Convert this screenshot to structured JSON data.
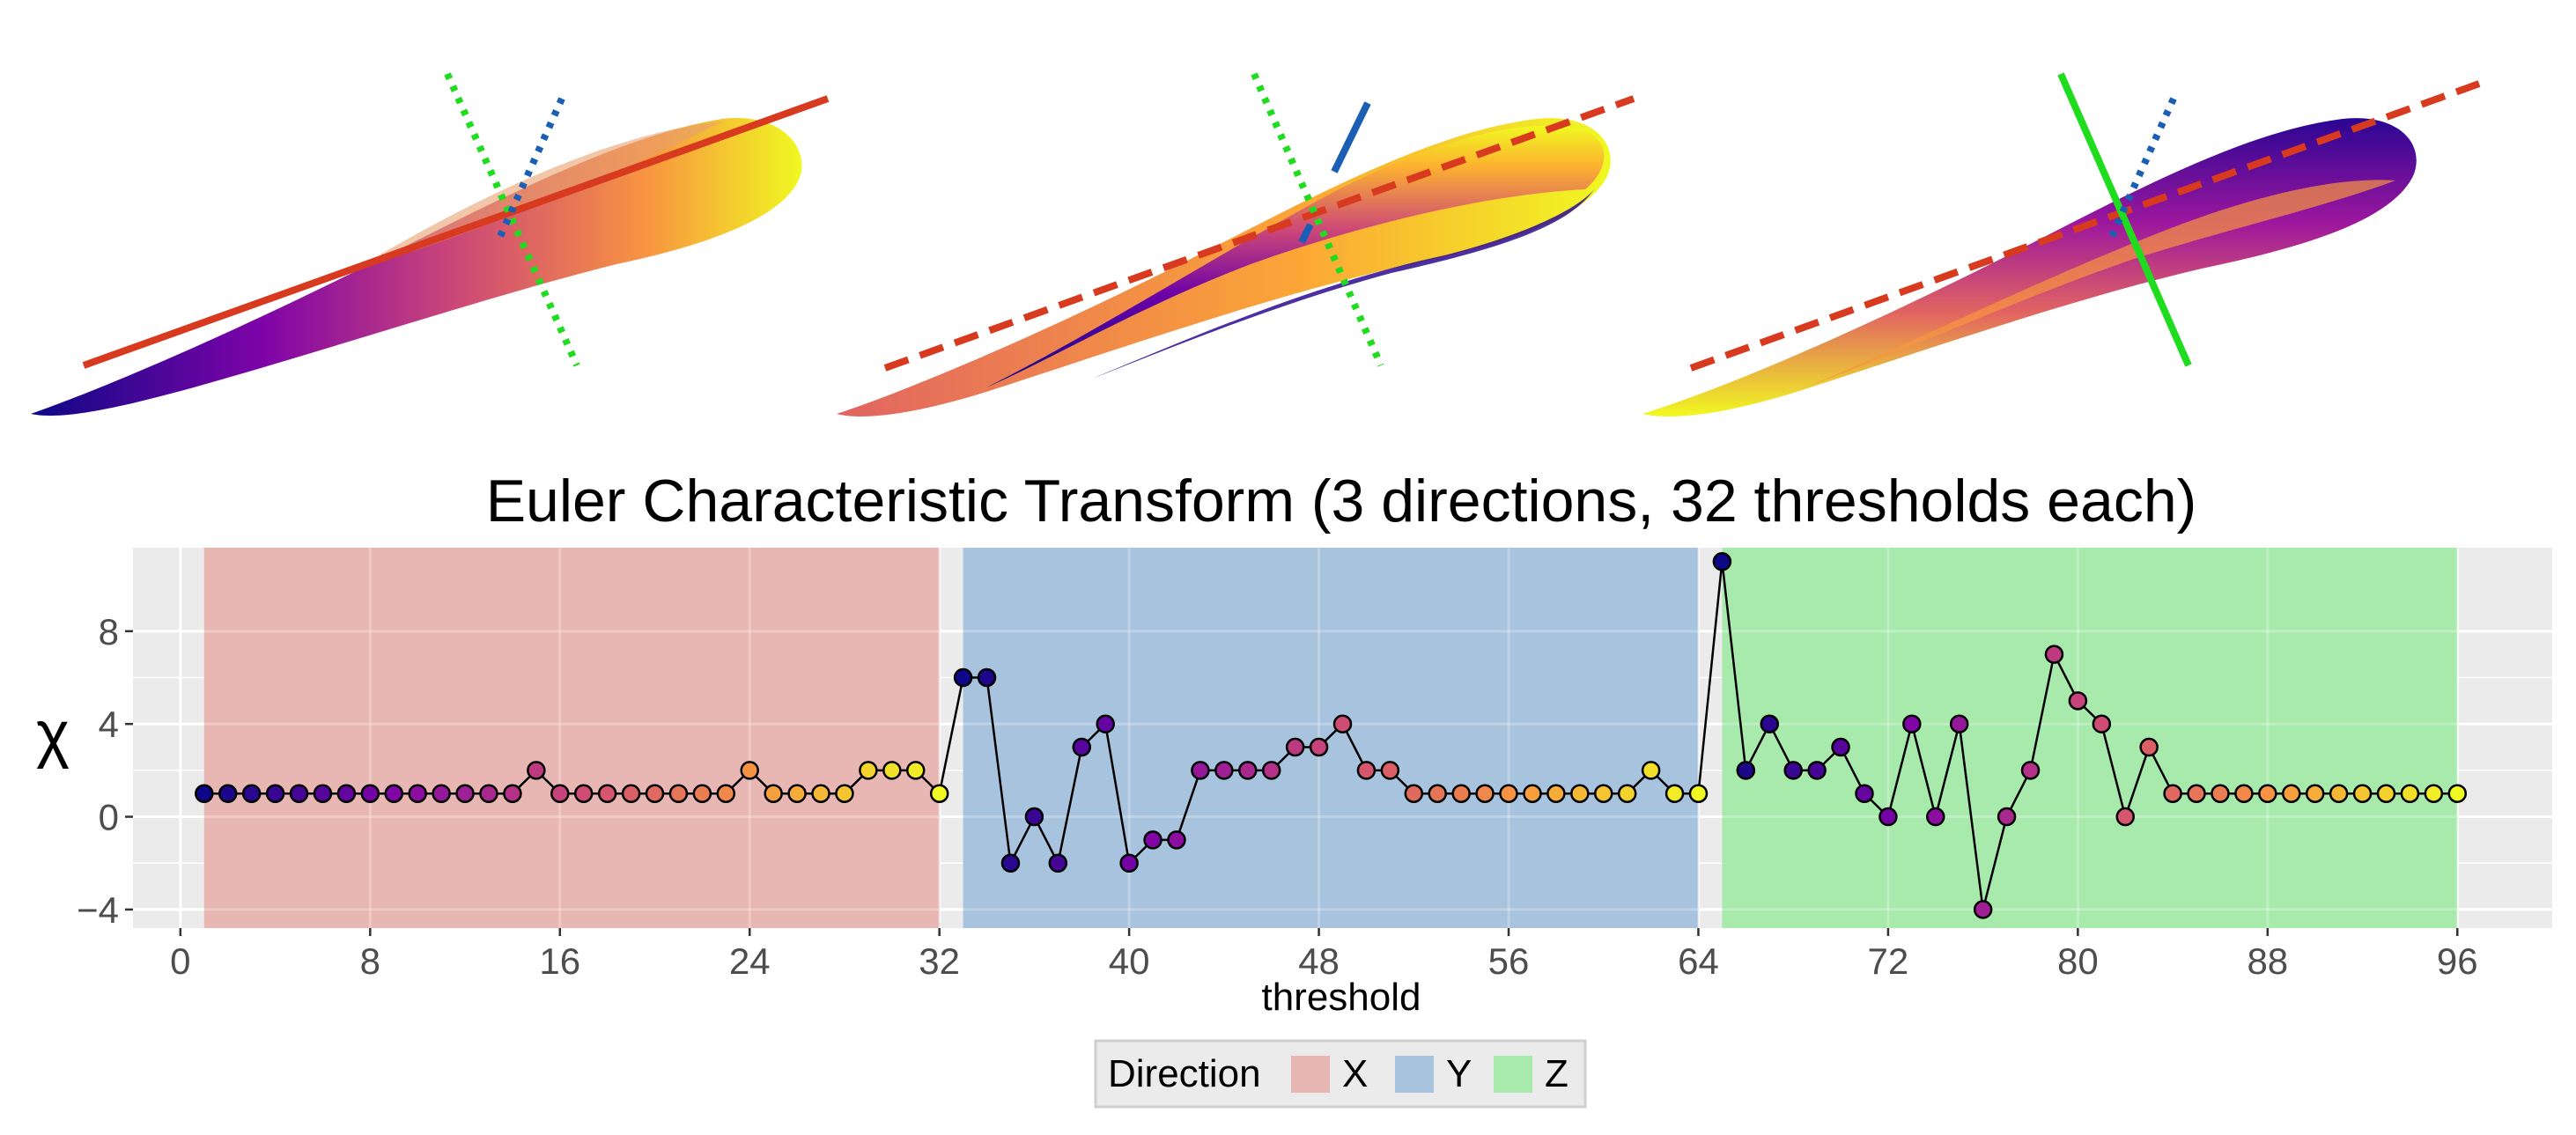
{
  "colors": {
    "X": "#e8b7b3",
    "Y": "#a8c3de",
    "Z": "#a8eaab",
    "panel_bg": "#ebebeb",
    "grid": "#ffffff",
    "line": "#000000",
    "ect_x_axis": "#d73a1e",
    "ect_y_axis": "#1a5fb4",
    "ect_z_axis": "#1fdc1f"
  },
  "colormap": "plasma",
  "illustrations": [
    {
      "name": "leaf-direction-x",
      "x_axis_style": "solid",
      "y_axis_style": "dotted",
      "z_axis_style": "dotted"
    },
    {
      "name": "leaf-direction-y",
      "x_axis_style": "dashed",
      "y_axis_style": "solid",
      "z_axis_style": "dotted"
    },
    {
      "name": "leaf-direction-z",
      "x_axis_style": "dashed",
      "y_axis_style": "dotted",
      "z_axis_style": "solid"
    }
  ],
  "chart_data": {
    "type": "line",
    "title": "Euler Characteristic Transform (3 directions, 32 thresholds each)",
    "xlabel": "threshold",
    "ylabel": "χ",
    "xlim": [
      -2,
      100
    ],
    "ylim": [
      -4.8,
      11.6
    ],
    "xticks": [
      0,
      8,
      16,
      24,
      32,
      40,
      48,
      56,
      64,
      72,
      80,
      88,
      96
    ],
    "yticks": [
      -4,
      0,
      4,
      8
    ],
    "ytick_labels": [
      "−4",
      "0",
      "4",
      "8"
    ],
    "grid": true,
    "bands": [
      {
        "direction": "X",
        "from": 1,
        "to": 32
      },
      {
        "direction": "Y",
        "from": 33,
        "to": 64
      },
      {
        "direction": "Z",
        "from": 65,
        "to": 96
      }
    ],
    "x": [
      1,
      2,
      3,
      4,
      5,
      6,
      7,
      8,
      9,
      10,
      11,
      12,
      13,
      14,
      15,
      16,
      17,
      18,
      19,
      20,
      21,
      22,
      23,
      24,
      25,
      26,
      27,
      28,
      29,
      30,
      31,
      32,
      33,
      34,
      35,
      36,
      37,
      38,
      39,
      40,
      41,
      42,
      43,
      44,
      45,
      46,
      47,
      48,
      49,
      50,
      51,
      52,
      53,
      54,
      55,
      56,
      57,
      58,
      59,
      60,
      61,
      62,
      63,
      64,
      65,
      66,
      67,
      68,
      69,
      70,
      71,
      72,
      73,
      74,
      75,
      76,
      77,
      78,
      79,
      80,
      81,
      82,
      83,
      84,
      85,
      86,
      87,
      88,
      89,
      90,
      91,
      92,
      93,
      94,
      95,
      96
    ],
    "values": [
      1,
      1,
      1,
      1,
      1,
      1,
      1,
      1,
      1,
      1,
      1,
      1,
      1,
      1,
      2,
      1,
      1,
      1,
      1,
      1,
      1,
      1,
      1,
      2,
      1,
      1,
      1,
      1,
      2,
      2,
      2,
      1,
      6,
      6,
      -2,
      0,
      -2,
      3,
      4,
      -2,
      -1,
      -1,
      2,
      2,
      2,
      2,
      3,
      3,
      4,
      2,
      2,
      1,
      1,
      1,
      1,
      1,
      1,
      1,
      1,
      1,
      1,
      2,
      1,
      1,
      11,
      2,
      4,
      2,
      2,
      3,
      1,
      0,
      4,
      0,
      4,
      -4,
      0,
      2,
      7,
      5,
      4,
      0,
      3,
      1,
      1,
      1,
      1,
      1,
      1,
      1,
      1,
      1,
      1,
      1,
      1,
      1
    ],
    "point_color": "plasma colormap by threshold index within each direction",
    "legend": {
      "title": "Direction",
      "entries": [
        "X",
        "Y",
        "Z"
      ],
      "placement": "bottom"
    }
  }
}
